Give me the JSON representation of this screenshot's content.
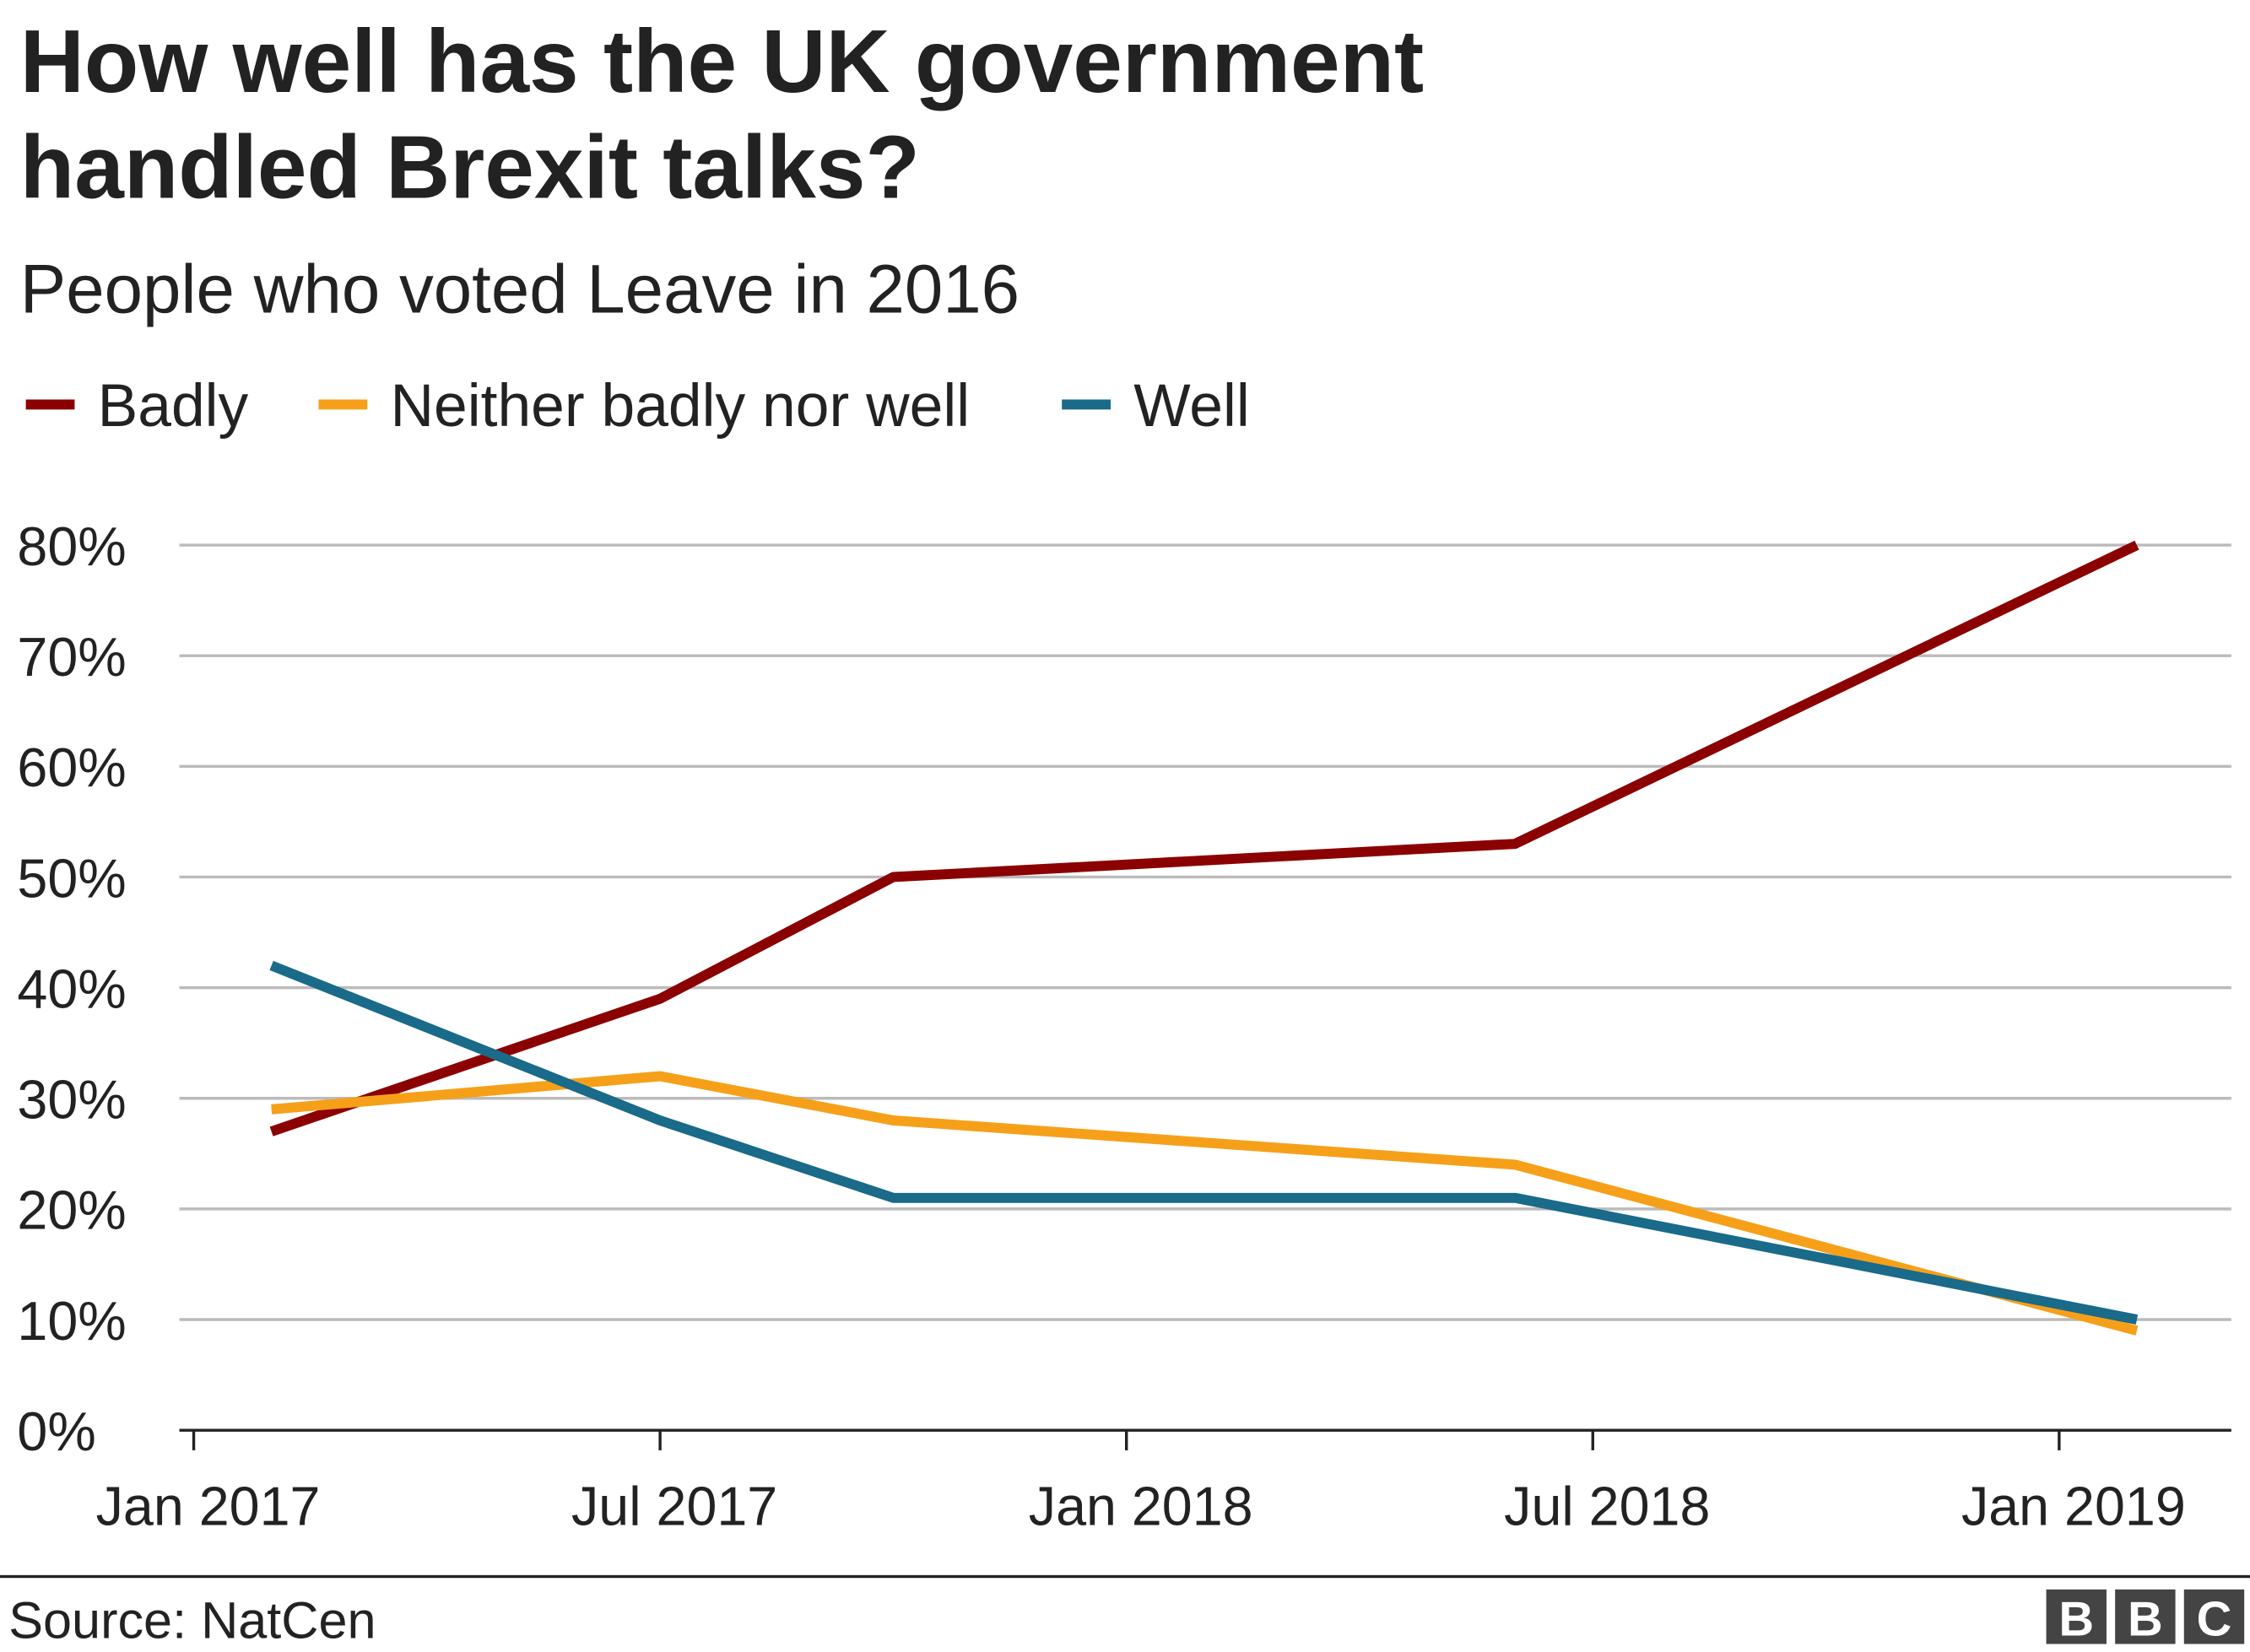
{
  "chart_data": {
    "type": "line",
    "title": "How well has the UK government handled Brexit talks?",
    "title_lines": [
      "How well has the UK government",
      "handled Brexit talks?"
    ],
    "subtitle": "People who voted Leave in 2016",
    "x": [
      "2017-02",
      "2017-07",
      "2017-10",
      "2018-06",
      "2019-02"
    ],
    "series": [
      {
        "name": "Badly",
        "color": "#8b0000",
        "values": [
          27,
          39,
          50,
          53,
          80
        ]
      },
      {
        "name": "Neither badly nor well",
        "color": "#f6a01a",
        "values": [
          29,
          32,
          28,
          24,
          9
        ]
      },
      {
        "name": "Well",
        "color": "#1a6a8a",
        "values": [
          42,
          28,
          21,
          21,
          10
        ]
      }
    ],
    "ylim": [
      0,
      80
    ],
    "yticks": [
      "0%",
      "10%",
      "20%",
      "30%",
      "40%",
      "50%",
      "60%",
      "70%",
      "80%"
    ],
    "xticks": [
      "Jan 2017",
      "Jul 2017",
      "Jan 2018",
      "Jul 2018",
      "Jan 2019"
    ],
    "grid": true,
    "legend_position": "top-left"
  },
  "footer": {
    "source": "Source: NatCen",
    "logo": "BBC"
  }
}
